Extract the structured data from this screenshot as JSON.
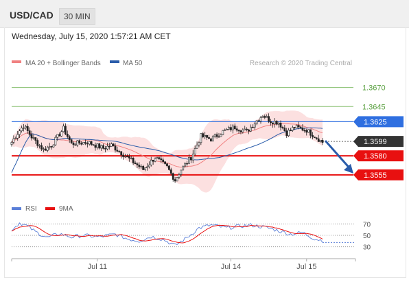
{
  "header": {
    "symbol": "USD/CAD",
    "timeframe": "30 MIN",
    "datetime": "Wednesday, July 15, 2020 1:57:21 AM CET"
  },
  "chart_data": [
    {
      "type": "candlestick",
      "legend": [
        {
          "label": "MA 20 + Bollinger Bands",
          "color": "#f08080"
        },
        {
          "label": "MA 50",
          "color": "#2a5caa"
        }
      ],
      "legend_placement": "top-left",
      "credit": "Research © 2020 Trading Central",
      "x_tick_labels": [
        "Jul 11",
        "Jul 14",
        "Jul 15"
      ],
      "ylim": [
        1.3525,
        1.3695
      ],
      "levels": [
        {
          "value": 1.367,
          "label": "1.3670",
          "kind": "target",
          "color": "#88c070"
        },
        {
          "value": 1.3645,
          "label": "1.3645",
          "kind": "target",
          "color": "#88c070"
        },
        {
          "value": 1.3625,
          "label": "1.3625",
          "kind": "pivot",
          "color": "#2f6fe0"
        },
        {
          "value": 1.3599,
          "label": "1.3599",
          "kind": "last",
          "color": "#333333"
        },
        {
          "value": 1.358,
          "label": "1.3580",
          "kind": "support",
          "color": "#e81010"
        },
        {
          "value": 1.3555,
          "label": "1.3555",
          "kind": "support",
          "color": "#e81010"
        }
      ],
      "projection": {
        "from": 1.36,
        "to": 1.3555,
        "color": "#2a5caa"
      },
      "anchors": [
        {
          "i": 0,
          "p": 1.3598
        },
        {
          "i": 3,
          "p": 1.361
        },
        {
          "i": 6,
          "p": 1.362
        },
        {
          "i": 10,
          "p": 1.3605
        },
        {
          "i": 16,
          "p": 1.3588
        },
        {
          "i": 20,
          "p": 1.3594
        },
        {
          "i": 26,
          "p": 1.3616
        },
        {
          "i": 30,
          "p": 1.3596
        },
        {
          "i": 38,
          "p": 1.3598
        },
        {
          "i": 46,
          "p": 1.359
        },
        {
          "i": 50,
          "p": 1.3594
        },
        {
          "i": 56,
          "p": 1.3582
        },
        {
          "i": 62,
          "p": 1.357
        },
        {
          "i": 66,
          "p": 1.3562
        },
        {
          "i": 72,
          "p": 1.3578
        },
        {
          "i": 78,
          "p": 1.3565
        },
        {
          "i": 82,
          "p": 1.3548
        },
        {
          "i": 85,
          "p": 1.3562
        },
        {
          "i": 90,
          "p": 1.3578
        },
        {
          "i": 95,
          "p": 1.3606
        },
        {
          "i": 100,
          "p": 1.3602
        },
        {
          "i": 106,
          "p": 1.3612
        },
        {
          "i": 112,
          "p": 1.3618
        },
        {
          "i": 118,
          "p": 1.3612
        },
        {
          "i": 122,
          "p": 1.3624
        },
        {
          "i": 126,
          "p": 1.3634
        },
        {
          "i": 130,
          "p": 1.3626
        },
        {
          "i": 134,
          "p": 1.3624
        },
        {
          "i": 138,
          "p": 1.361
        },
        {
          "i": 142,
          "p": 1.3618
        },
        {
          "i": 148,
          "p": 1.3614
        },
        {
          "i": 152,
          "p": 1.3606
        },
        {
          "i": 156,
          "p": 1.3598
        }
      ],
      "candle_count": 157
    },
    {
      "type": "line",
      "legend": [
        {
          "label": "RSI",
          "color": "#5a7fd8"
        },
        {
          "label": "9MA",
          "color": "#e81010"
        }
      ],
      "levels": [
        70,
        50,
        30
      ],
      "level_labels": [
        "70",
        "50",
        "30"
      ],
      "ylim": [
        15,
        85
      ],
      "anchors": [
        {
          "i": 0,
          "v": 60
        },
        {
          "i": 4,
          "v": 72
        },
        {
          "i": 8,
          "v": 66
        },
        {
          "i": 12,
          "v": 56
        },
        {
          "i": 18,
          "v": 46
        },
        {
          "i": 24,
          "v": 53
        },
        {
          "i": 30,
          "v": 47
        },
        {
          "i": 36,
          "v": 50
        },
        {
          "i": 44,
          "v": 47
        },
        {
          "i": 52,
          "v": 52
        },
        {
          "i": 58,
          "v": 44
        },
        {
          "i": 64,
          "v": 40
        },
        {
          "i": 70,
          "v": 48
        },
        {
          "i": 76,
          "v": 43
        },
        {
          "i": 82,
          "v": 32
        },
        {
          "i": 88,
          "v": 46
        },
        {
          "i": 94,
          "v": 63
        },
        {
          "i": 100,
          "v": 68
        },
        {
          "i": 108,
          "v": 63
        },
        {
          "i": 114,
          "v": 66
        },
        {
          "i": 120,
          "v": 68
        },
        {
          "i": 126,
          "v": 65
        },
        {
          "i": 132,
          "v": 60
        },
        {
          "i": 140,
          "v": 52
        },
        {
          "i": 146,
          "v": 55
        },
        {
          "i": 152,
          "v": 44
        },
        {
          "i": 156,
          "v": 41
        }
      ]
    }
  ]
}
